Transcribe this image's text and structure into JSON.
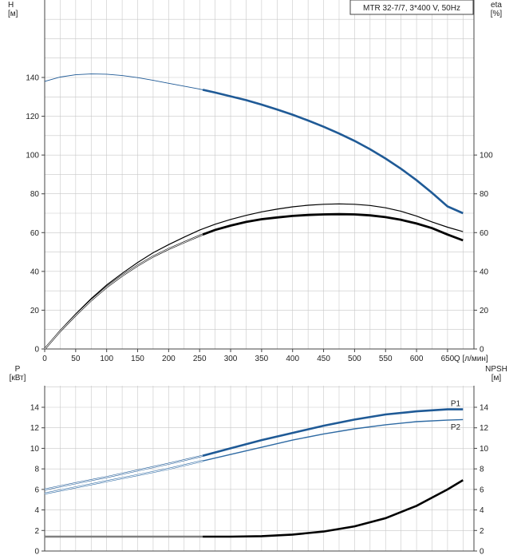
{
  "header": {
    "pump_label": "MTR 32-7/7, 3*400 V, 50Hz"
  },
  "colors": {
    "head": "#1f5a96",
    "p1": "#1f5a96",
    "p2": "#2e6aa3",
    "eta": "#000000",
    "npsh": "#000000",
    "grid": "#c8c8c8"
  },
  "chart_data": [
    {
      "type": "line",
      "title": "MTR 32-7/7, 3*400 V, 50Hz",
      "xlabel": "Q [л/мин]",
      "ylabel": "H\n[м]",
      "y2label": "eta\n[%]",
      "xlim": [
        0,
        700
      ],
      "ylim": [
        0,
        160
      ],
      "y2lim": [
        0,
        160
      ],
      "grid": true,
      "x_ticks": [
        "0",
        "50",
        "100",
        "150",
        "200",
        "250",
        "300",
        "350",
        "400",
        "450",
        "500",
        "550",
        "600",
        "650"
      ],
      "y_ticks": [
        "0",
        "20",
        "40",
        "60",
        "80",
        "100",
        "120",
        "140"
      ],
      "y2_ticks": [
        "0",
        "20",
        "40",
        "60",
        "80",
        "100"
      ],
      "series": [
        {
          "axis": "left",
          "x": [
            0,
            25,
            50,
            75,
            100,
            125,
            150,
            175,
            200,
            225,
            250,
            275,
            300,
            325,
            350,
            375,
            400,
            425,
            450,
            475,
            500,
            525,
            550,
            575,
            600,
            625,
            650,
            675
          ],
          "values": [
            138,
            140.2,
            141.4,
            141.8,
            141.7,
            141,
            139.9,
            138.5,
            137,
            135.5,
            134,
            132.2,
            130.3,
            128.3,
            126,
            123.5,
            120.8,
            117.8,
            114.6,
            111.1,
            107.3,
            103,
            98.2,
            92.9,
            87,
            80.5,
            73.5,
            70
          ],
          "bold_from": 255
        },
        {
          "axis": "right",
          "x": [
            0,
            25,
            50,
            75,
            100,
            125,
            150,
            175,
            200,
            225,
            250,
            275,
            300,
            325,
            350,
            375,
            400,
            425,
            450,
            475,
            500,
            525,
            550,
            575,
            600,
            625,
            650,
            675
          ],
          "values": [
            0,
            9.5,
            18,
            26,
            33,
            39,
            44.6,
            49.6,
            53.8,
            57.7,
            61.3,
            64.3,
            66.8,
            68.9,
            70.7,
            72.1,
            73.3,
            74.1,
            74.6,
            74.8,
            74.6,
            74,
            72.8,
            71,
            68.5,
            65.5,
            62.8,
            60.5
          ]
        },
        {
          "axis": "right",
          "x": [
            0,
            25,
            50,
            75,
            100,
            125,
            150,
            175,
            200,
            225,
            250,
            275,
            300,
            325,
            350,
            375,
            400,
            425,
            450,
            475,
            500,
            525,
            550,
            575,
            600,
            625,
            650,
            675
          ],
          "values": [
            0,
            9.2,
            17.4,
            25.1,
            31.9,
            37.8,
            43,
            47.7,
            51.6,
            55,
            58.4,
            61.4,
            63.6,
            65.5,
            66.9,
            67.8,
            68.6,
            69.1,
            69.4,
            69.5,
            69.4,
            68.9,
            68,
            66.6,
            64.7,
            62.3,
            59,
            56
          ],
          "bold_from": 255
        }
      ]
    },
    {
      "type": "line",
      "ylabel": "P\n[кВт]",
      "y2label": "NPSH\n[м]",
      "xlim": [
        0,
        700
      ],
      "ylim": [
        0,
        16
      ],
      "y2lim": [
        0,
        16
      ],
      "grid": true,
      "y_ticks": [
        "0",
        "2",
        "4",
        "6",
        "8",
        "10",
        "12",
        "14"
      ],
      "y2_ticks": [
        "0",
        "2",
        "4",
        "6",
        "8",
        "10",
        "12",
        "14"
      ],
      "series": [
        {
          "name": "P1",
          "axis": "left",
          "x": [
            0,
            50,
            100,
            150,
            200,
            250,
            300,
            350,
            400,
            450,
            500,
            550,
            600,
            650,
            675
          ],
          "values": [
            6,
            6.6,
            7.2,
            7.85,
            8.5,
            9.2,
            10,
            10.8,
            11.5,
            12.2,
            12.8,
            13.3,
            13.6,
            13.8,
            13.8
          ],
          "bold_from": 255
        },
        {
          "name": "P2",
          "axis": "left",
          "x": [
            0,
            50,
            100,
            150,
            200,
            250,
            300,
            350,
            400,
            450,
            500,
            550,
            600,
            650,
            675
          ],
          "values": [
            5.6,
            6.2,
            6.8,
            7.4,
            8,
            8.7,
            9.4,
            10.1,
            10.8,
            11.4,
            11.9,
            12.3,
            12.6,
            12.75,
            12.8
          ],
          "bold_from": 255
        },
        {
          "axis": "right",
          "x": [
            0,
            250,
            300,
            350,
            400,
            450,
            500,
            550,
            600,
            625,
            650,
            675
          ],
          "values": [
            1.4,
            1.4,
            1.4,
            1.45,
            1.6,
            1.9,
            2.4,
            3.2,
            4.4,
            5.2,
            6,
            6.9
          ],
          "bold_from": 255
        }
      ]
    }
  ]
}
